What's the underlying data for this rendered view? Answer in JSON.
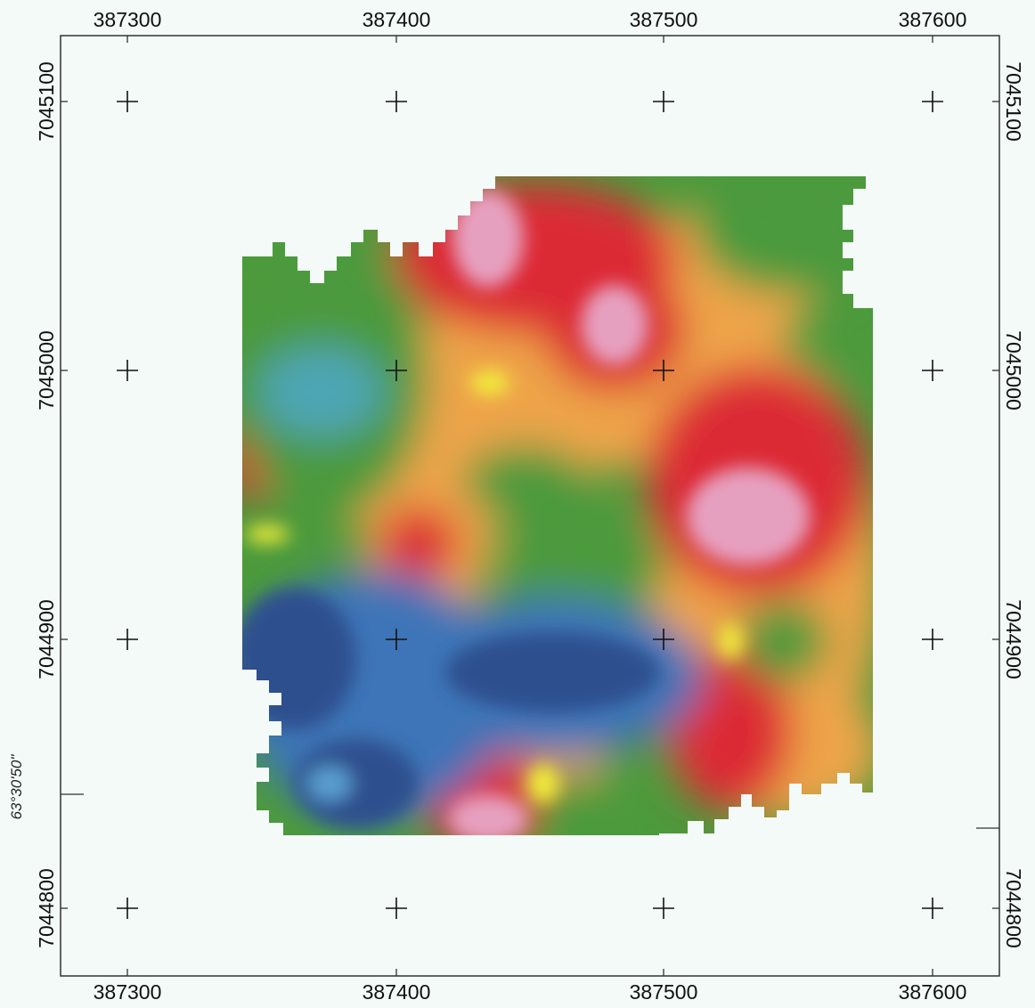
{
  "map": {
    "easting_ticks": [
      "387300",
      "387400",
      "387500",
      "387600"
    ],
    "northing_ticks": [
      "7045100",
      "7045000",
      "7044900",
      "7044800"
    ],
    "latitude_label": "63°30'50\"",
    "colors": {
      "deep_blue": "#2d4f8e",
      "blue": "#3d74b8",
      "light_blue": "#5a9ed0",
      "cyan": "#4ea6b6",
      "green": "#4c9a3c",
      "light_green": "#7cb53a",
      "yellow": "#f2ee3a",
      "orange": "#eea44a",
      "red": "#dc2b34",
      "pink": "#e6a0bf",
      "background": "#f3faf8"
    }
  }
}
